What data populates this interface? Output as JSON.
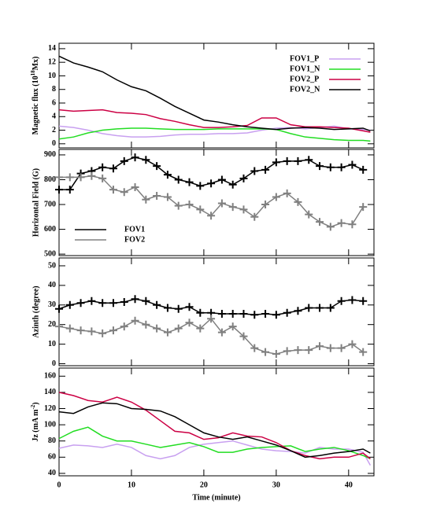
{
  "chart_data": [
    {
      "type": "line",
      "ylabel": [
        "Magnetic flux (10",
        "18",
        "Mx)"
      ],
      "x": [
        0,
        2,
        4,
        6,
        8,
        10,
        12,
        14,
        16,
        18,
        20,
        22,
        24,
        26,
        28,
        30,
        32,
        34,
        36,
        38,
        40,
        42,
        43
      ],
      "xlim": [
        0,
        43.5
      ],
      "ylim": [
        -0.6,
        14.8
      ],
      "yticks": [
        0,
        2,
        4,
        6,
        8,
        10,
        12,
        14
      ],
      "legend": "upper right",
      "series": [
        {
          "name": "FOV1_P",
          "color": "#c8a0f0",
          "values": [
            2.6,
            2.4,
            2.0,
            1.5,
            1.2,
            1.0,
            1.0,
            1.1,
            1.3,
            1.4,
            1.4,
            1.5,
            1.5,
            1.6,
            2.0,
            2.3,
            2.4,
            2.2,
            2.4,
            2.6,
            2.2,
            2.1,
            2.0
          ]
        },
        {
          "name": "FOV1_N",
          "color": "#22dd22",
          "values": [
            0.7,
            1.0,
            1.6,
            2.0,
            2.2,
            2.3,
            2.3,
            2.2,
            2.1,
            2.1,
            2.1,
            2.2,
            2.2,
            2.2,
            2.2,
            2.1,
            1.5,
            1.0,
            0.8,
            0.6,
            0.5,
            0.5,
            0.4
          ]
        },
        {
          "name": "FOV2_P",
          "color": "#cc0044",
          "values": [
            5.0,
            4.8,
            4.9,
            5.0,
            4.6,
            4.5,
            4.3,
            3.7,
            3.3,
            2.8,
            2.4,
            2.4,
            2.5,
            2.7,
            3.8,
            3.8,
            2.8,
            2.5,
            2.5,
            2.4,
            2.3,
            1.9,
            1.7
          ]
        },
        {
          "name": "FOV2_N",
          "color": "#000000",
          "values": [
            12.9,
            11.9,
            11.3,
            10.6,
            9.4,
            8.4,
            7.8,
            6.7,
            5.5,
            4.5,
            3.5,
            3.2,
            2.8,
            2.5,
            2.3,
            2.1,
            2.3,
            2.4,
            2.3,
            2.1,
            2.2,
            2.3,
            1.9
          ]
        }
      ]
    },
    {
      "type": "line",
      "ylabel": "Horizontal Field (G)",
      "marker": "plus",
      "x": [
        0,
        1.5,
        3,
        4.5,
        6,
        7.5,
        9,
        10.5,
        12,
        13.5,
        15,
        16.5,
        18,
        19.5,
        21,
        22.5,
        24,
        25.5,
        27,
        28.5,
        30,
        31.5,
        33,
        34.5,
        36,
        37.5,
        39,
        40.5,
        42
      ],
      "xlim": [
        0,
        43.5
      ],
      "ylim": [
        494,
        922
      ],
      "yticks": [
        500,
        600,
        700,
        800,
        900
      ],
      "legend": "left",
      "series": [
        {
          "name": "FOV1",
          "color": "#000000",
          "values": [
            760,
            760,
            825,
            835,
            850,
            845,
            875,
            890,
            880,
            855,
            820,
            800,
            790,
            775,
            785,
            800,
            780,
            805,
            835,
            840,
            870,
            875,
            875,
            880,
            855,
            850,
            850,
            860,
            840
          ]
        },
        {
          "name": "FOV2",
          "color": "#808080",
          "values": [
            810,
            810,
            810,
            815,
            805,
            760,
            750,
            770,
            720,
            735,
            730,
            695,
            700,
            680,
            655,
            705,
            690,
            680,
            650,
            700,
            730,
            745,
            710,
            660,
            630,
            610,
            625,
            620,
            690
          ]
        }
      ]
    },
    {
      "type": "line",
      "ylabel": "Azinth (degree)",
      "marker": "plus",
      "x": [
        0,
        1.5,
        3,
        4.5,
        6,
        7.5,
        9,
        10.5,
        12,
        13.5,
        15,
        16.5,
        18,
        19.5,
        21,
        22.5,
        24,
        25.5,
        27,
        28.5,
        30,
        31.5,
        33,
        34.5,
        36,
        37.5,
        39,
        40.5,
        42
      ],
      "xlim": [
        0,
        43.5
      ],
      "ylim": [
        -1,
        54
      ],
      "yticks": [
        0,
        10,
        20,
        30,
        40,
        50
      ],
      "series": [
        {
          "color": "#000000",
          "values": [
            28,
            30,
            31,
            32,
            31,
            31,
            31.5,
            33,
            32,
            30,
            28.5,
            28,
            29,
            26,
            26,
            25.5,
            25.5,
            25.5,
            25,
            25.5,
            25,
            26,
            27,
            28.5,
            28.5,
            28.5,
            32,
            32.5,
            32
          ]
        },
        {
          "color": "#808080",
          "values": [
            19,
            18,
            17,
            16.5,
            15.5,
            17,
            19,
            22,
            20,
            18,
            16,
            18,
            21,
            18,
            23,
            16,
            19,
            14,
            8,
            6,
            5,
            6.5,
            7,
            7,
            9,
            8,
            8,
            10,
            6
          ]
        }
      ]
    },
    {
      "type": "line",
      "ylabel": [
        "Jz (mA m",
        "-2",
        ")"
      ],
      "xlabel": "Time (minute)",
      "x": [
        0,
        2,
        4,
        6,
        8,
        10,
        12,
        14,
        16,
        18,
        20,
        22,
        24,
        26,
        28,
        30,
        32,
        34,
        36,
        38,
        40,
        42,
        43
      ],
      "xlim": [
        0,
        43.5
      ],
      "xticks": [
        0,
        10,
        20,
        30,
        40
      ],
      "ylim": [
        37,
        170
      ],
      "yticks": [
        40,
        60,
        80,
        100,
        120,
        140,
        160
      ],
      "series": [
        {
          "color": "#c8a0f0",
          "values": [
            71,
            75,
            74,
            72,
            76,
            72,
            62,
            58,
            62,
            72,
            76,
            78,
            80,
            75,
            70,
            68,
            67,
            65,
            72,
            70,
            70,
            66,
            50
          ]
        },
        {
          "color": "#22dd22",
          "values": [
            83,
            92,
            97,
            86,
            80,
            80,
            76,
            72,
            75,
            78,
            73,
            66,
            66,
            70,
            72,
            73,
            74,
            67,
            70,
            72,
            68,
            62,
            58
          ]
        },
        {
          "color": "#cc0044",
          "values": [
            140,
            136,
            130,
            128,
            134,
            128,
            118,
            105,
            92,
            90,
            82,
            84,
            90,
            86,
            85,
            78,
            68,
            62,
            58,
            60,
            60,
            65,
            58
          ]
        },
        {
          "color": "#000000",
          "values": [
            116,
            114,
            122,
            127,
            126,
            120,
            119,
            117,
            110,
            100,
            90,
            85,
            82,
            85,
            80,
            75,
            68,
            60,
            62,
            65,
            67,
            70,
            65
          ]
        }
      ]
    }
  ]
}
